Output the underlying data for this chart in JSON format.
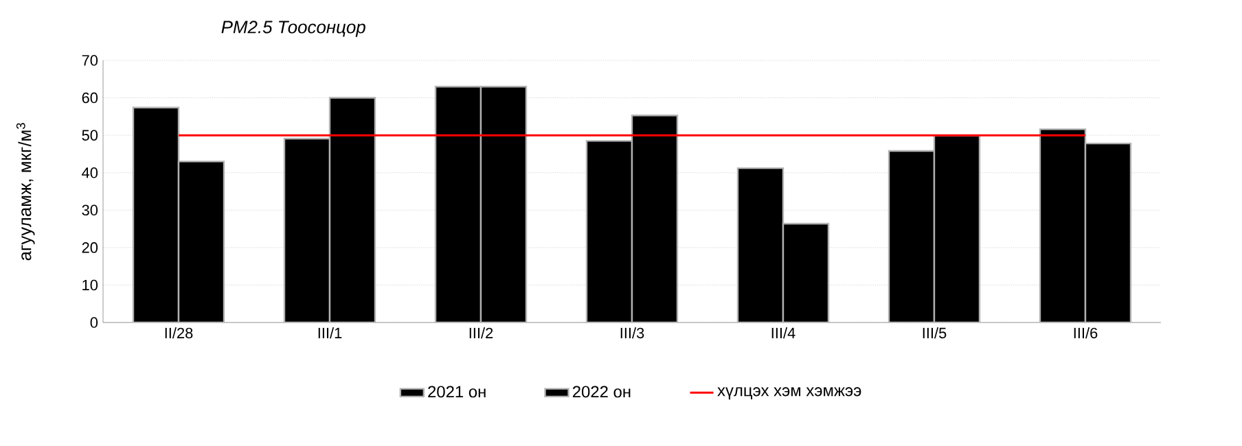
{
  "chart_data": {
    "type": "bar",
    "title": "*PM2.5 Тоосонцор*",
    "ylabel": "агууламж, мкг/м$^{3}$",
    "categories": [
      "II/28",
      "III/1",
      "III/2",
      "III/3",
      "III/4",
      "III/5",
      "III/6"
    ],
    "series": [
      {
        "name": "2021 он",
        "color": "#000000",
        "values": [
          57.4,
          49.1,
          63.0,
          48.5,
          41.2,
          45.8,
          51.6
        ]
      },
      {
        "name": "2022 он",
        "color": "#000000",
        "values": [
          43.0,
          60.0,
          63.0,
          55.3,
          26.4,
          49.9,
          47.8
        ]
      },
      {
        "name": "хүлцэх хэм хэмжээ",
        "type": "line",
        "color": "#ff0000",
        "values": [
          50,
          50,
          50,
          50,
          50,
          50,
          50
        ]
      }
    ],
    "ylim": [
      0,
      70
    ],
    "yticks": [
      0,
      10,
      20,
      30,
      40,
      50,
      60,
      70
    ],
    "grid": "y",
    "legend": "bottom"
  }
}
